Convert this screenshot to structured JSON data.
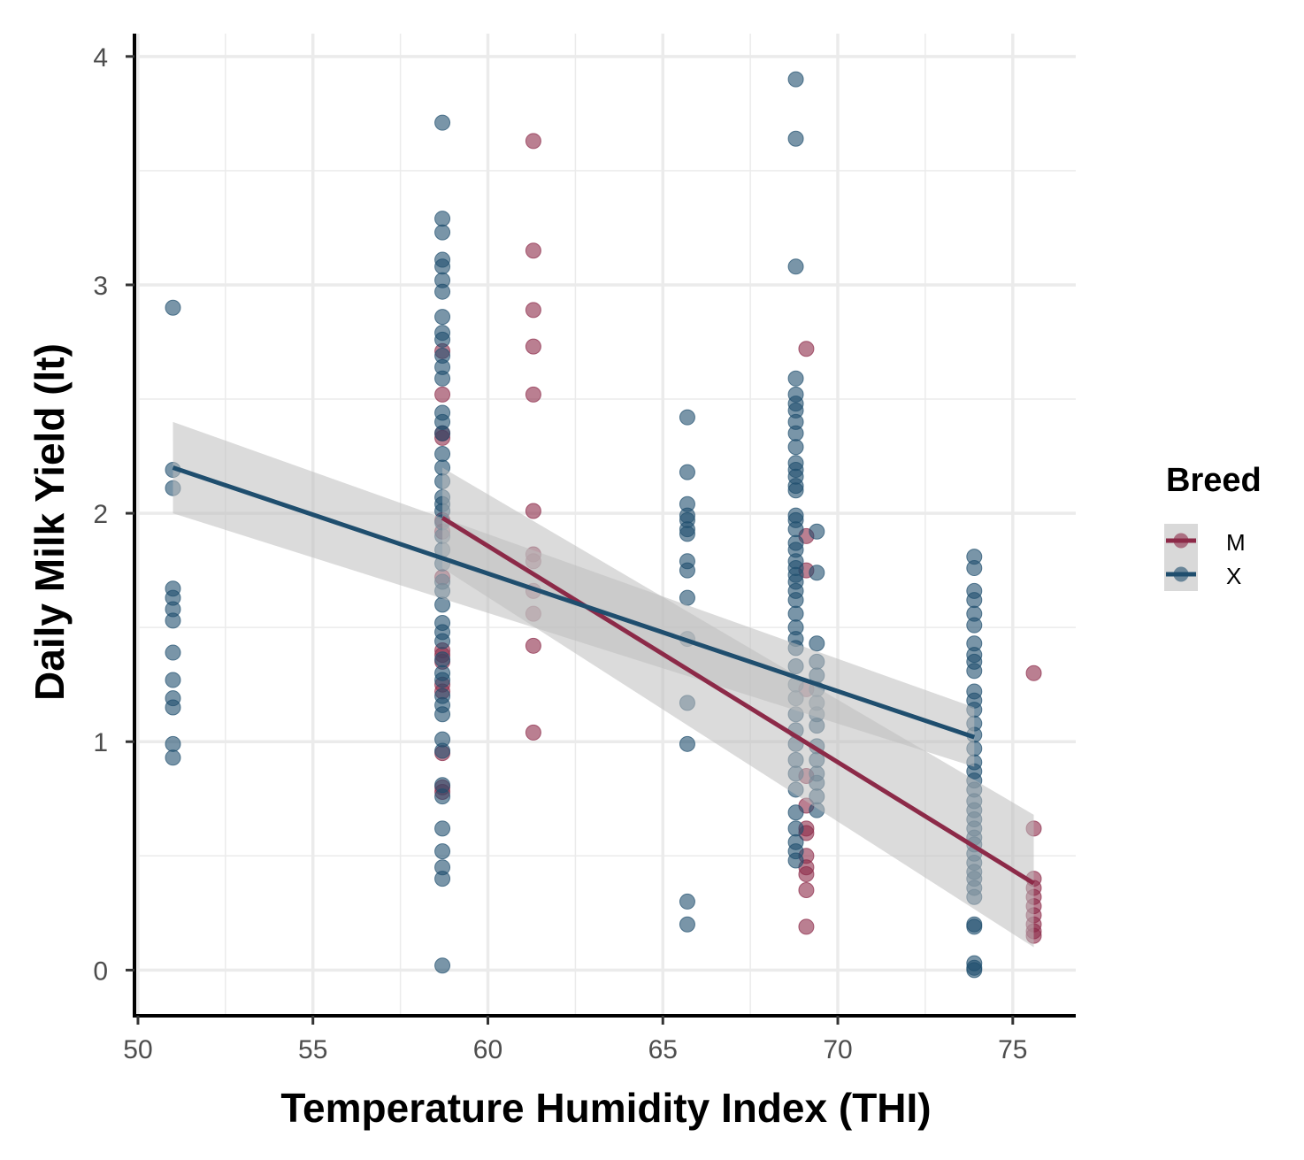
{
  "chart_data": {
    "type": "scatter",
    "title": "",
    "xlabel": "Temperature Humidity Index (THI)",
    "ylabel": "Daily Milk Yield (lt)",
    "xlim": [
      49.9,
      76.8
    ],
    "ylim": [
      -0.2,
      4.1
    ],
    "x_ticks": [
      50,
      55,
      60,
      65,
      70,
      75
    ],
    "y_ticks": [
      0,
      1,
      2,
      3,
      4
    ],
    "x_tick_labels": [
      "50",
      "55",
      "60",
      "65",
      "70",
      "75"
    ],
    "y_tick_labels": [
      "0",
      "1",
      "2",
      "3",
      "4"
    ],
    "grid": true,
    "legend": {
      "title": "Breed",
      "position": "right",
      "entries": [
        "M",
        "X"
      ]
    },
    "colors": {
      "M": "#8c2a48",
      "X": "#1f4e6e",
      "band": "#bdbdbd",
      "grid": "#ebebeb",
      "axis": "#000000"
    },
    "series": [
      {
        "name": "M",
        "points": [
          [
            58.7,
            2.71
          ],
          [
            58.7,
            2.52
          ],
          [
            58.7,
            2.35
          ],
          [
            58.7,
            2.33
          ],
          [
            58.7,
            1.97
          ],
          [
            58.7,
            1.92
          ],
          [
            58.7,
            1.72
          ],
          [
            58.7,
            1.4
          ],
          [
            58.7,
            1.38
          ],
          [
            58.7,
            1.35
          ],
          [
            58.7,
            1.25
          ],
          [
            58.7,
            1.22
          ],
          [
            58.7,
            0.95
          ],
          [
            58.7,
            0.8
          ],
          [
            58.7,
            0.78
          ],
          [
            61.3,
            3.63
          ],
          [
            61.3,
            3.15
          ],
          [
            61.3,
            2.89
          ],
          [
            61.3,
            2.73
          ],
          [
            61.3,
            2.52
          ],
          [
            61.3,
            2.01
          ],
          [
            61.3,
            1.82
          ],
          [
            61.3,
            1.79
          ],
          [
            61.3,
            1.66
          ],
          [
            61.3,
            1.56
          ],
          [
            61.3,
            1.42
          ],
          [
            61.3,
            1.04
          ],
          [
            69.1,
            2.72
          ],
          [
            69.1,
            1.9
          ],
          [
            69.1,
            1.75
          ],
          [
            69.1,
            1.23
          ],
          [
            69.1,
            0.85
          ],
          [
            69.1,
            0.72
          ],
          [
            69.1,
            0.62
          ],
          [
            69.1,
            0.6
          ],
          [
            69.1,
            0.5
          ],
          [
            69.1,
            0.45
          ],
          [
            69.1,
            0.42
          ],
          [
            69.1,
            0.35
          ],
          [
            69.1,
            0.19
          ],
          [
            75.6,
            1.3
          ],
          [
            75.6,
            0.62
          ],
          [
            75.6,
            0.4
          ],
          [
            75.6,
            0.36
          ],
          [
            75.6,
            0.32
          ],
          [
            75.6,
            0.28
          ],
          [
            75.6,
            0.24
          ],
          [
            75.6,
            0.2
          ],
          [
            75.6,
            0.17
          ],
          [
            75.6,
            0.15
          ]
        ],
        "fit": {
          "x": [
            58.7,
            75.6
          ],
          "y": [
            1.98,
            0.38
          ],
          "ci_upper": [
            2.2,
            0.68
          ],
          "ci_lower": [
            1.76,
            0.1
          ]
        }
      },
      {
        "name": "X",
        "points": [
          [
            51.0,
            2.9
          ],
          [
            51.0,
            2.19
          ],
          [
            51.0,
            2.11
          ],
          [
            51.0,
            1.67
          ],
          [
            51.0,
            1.63
          ],
          [
            51.0,
            1.58
          ],
          [
            51.0,
            1.53
          ],
          [
            51.0,
            1.39
          ],
          [
            51.0,
            1.27
          ],
          [
            51.0,
            1.19
          ],
          [
            51.0,
            1.15
          ],
          [
            51.0,
            0.99
          ],
          [
            51.0,
            0.93
          ],
          [
            58.7,
            3.71
          ],
          [
            58.7,
            3.29
          ],
          [
            58.7,
            3.23
          ],
          [
            58.7,
            3.11
          ],
          [
            58.7,
            3.08
          ],
          [
            58.7,
            3.02
          ],
          [
            58.7,
            2.97
          ],
          [
            58.7,
            2.86
          ],
          [
            58.7,
            2.79
          ],
          [
            58.7,
            2.76
          ],
          [
            58.7,
            2.69
          ],
          [
            58.7,
            2.64
          ],
          [
            58.7,
            2.59
          ],
          [
            58.7,
            2.44
          ],
          [
            58.7,
            2.4
          ],
          [
            58.7,
            2.35
          ],
          [
            58.7,
            2.26
          ],
          [
            58.7,
            2.2
          ],
          [
            58.7,
            2.14
          ],
          [
            58.7,
            2.07
          ],
          [
            58.7,
            2.04
          ],
          [
            58.7,
            2.01
          ],
          [
            58.7,
            1.96
          ],
          [
            58.7,
            1.9
          ],
          [
            58.7,
            1.84
          ],
          [
            58.7,
            1.78
          ],
          [
            58.7,
            1.7
          ],
          [
            58.7,
            1.66
          ],
          [
            58.7,
            1.6
          ],
          [
            58.7,
            1.52
          ],
          [
            58.7,
            1.48
          ],
          [
            58.7,
            1.44
          ],
          [
            58.7,
            1.36
          ],
          [
            58.7,
            1.3
          ],
          [
            58.7,
            1.27
          ],
          [
            58.7,
            1.2
          ],
          [
            58.7,
            1.16
          ],
          [
            58.7,
            1.12
          ],
          [
            58.7,
            1.01
          ],
          [
            58.7,
            0.96
          ],
          [
            58.7,
            0.81
          ],
          [
            58.7,
            0.76
          ],
          [
            58.7,
            0.62
          ],
          [
            58.7,
            0.52
          ],
          [
            58.7,
            0.45
          ],
          [
            58.7,
            0.4
          ],
          [
            58.7,
            0.02
          ],
          [
            65.7,
            2.42
          ],
          [
            65.7,
            2.18
          ],
          [
            65.7,
            2.04
          ],
          [
            65.7,
            1.99
          ],
          [
            65.7,
            1.97
          ],
          [
            65.7,
            1.93
          ],
          [
            65.7,
            1.91
          ],
          [
            65.7,
            1.79
          ],
          [
            65.7,
            1.75
          ],
          [
            65.7,
            1.63
          ],
          [
            65.7,
            1.45
          ],
          [
            65.7,
            1.17
          ],
          [
            65.7,
            0.99
          ],
          [
            65.7,
            0.3
          ],
          [
            65.7,
            0.2
          ],
          [
            68.8,
            3.9
          ],
          [
            68.8,
            3.64
          ],
          [
            68.8,
            3.08
          ],
          [
            68.8,
            2.59
          ],
          [
            68.8,
            2.52
          ],
          [
            68.8,
            2.48
          ],
          [
            68.8,
            2.45
          ],
          [
            68.8,
            2.4
          ],
          [
            68.8,
            2.35
          ],
          [
            68.8,
            2.29
          ],
          [
            68.8,
            2.22
          ],
          [
            68.8,
            2.19
          ],
          [
            68.8,
            2.16
          ],
          [
            68.8,
            2.12
          ],
          [
            68.8,
            2.1
          ],
          [
            68.8,
            1.99
          ],
          [
            68.8,
            1.97
          ],
          [
            68.8,
            1.93
          ],
          [
            68.8,
            1.87
          ],
          [
            68.8,
            1.84
          ],
          [
            68.8,
            1.79
          ],
          [
            68.8,
            1.76
          ],
          [
            68.8,
            1.73
          ],
          [
            68.8,
            1.7
          ],
          [
            68.8,
            1.66
          ],
          [
            68.8,
            1.62
          ],
          [
            68.8,
            1.56
          ],
          [
            68.8,
            1.5
          ],
          [
            68.8,
            1.45
          ],
          [
            68.8,
            1.41
          ],
          [
            68.8,
            1.33
          ],
          [
            68.8,
            1.25
          ],
          [
            68.8,
            1.19
          ],
          [
            68.8,
            1.12
          ],
          [
            68.8,
            1.05
          ],
          [
            68.8,
            0.99
          ],
          [
            68.8,
            0.92
          ],
          [
            68.8,
            0.86
          ],
          [
            68.8,
            0.79
          ],
          [
            68.8,
            0.69
          ],
          [
            68.8,
            0.62
          ],
          [
            68.8,
            0.56
          ],
          [
            68.8,
            0.52
          ],
          [
            68.8,
            0.48
          ],
          [
            69.4,
            1.92
          ],
          [
            69.4,
            1.74
          ],
          [
            69.4,
            1.43
          ],
          [
            69.4,
            1.35
          ],
          [
            69.4,
            1.29
          ],
          [
            69.4,
            1.23
          ],
          [
            69.4,
            1.17
          ],
          [
            69.4,
            1.12
          ],
          [
            69.4,
            1.07
          ],
          [
            69.4,
            0.98
          ],
          [
            69.4,
            0.92
          ],
          [
            69.4,
            0.86
          ],
          [
            69.4,
            0.82
          ],
          [
            69.4,
            0.76
          ],
          [
            69.4,
            0.7
          ],
          [
            73.9,
            1.81
          ],
          [
            73.9,
            1.76
          ],
          [
            73.9,
            1.66
          ],
          [
            73.9,
            1.62
          ],
          [
            73.9,
            1.56
          ],
          [
            73.9,
            1.51
          ],
          [
            73.9,
            1.43
          ],
          [
            73.9,
            1.38
          ],
          [
            73.9,
            1.35
          ],
          [
            73.9,
            1.31
          ],
          [
            73.9,
            1.22
          ],
          [
            73.9,
            1.18
          ],
          [
            73.9,
            1.14
          ],
          [
            73.9,
            1.08
          ],
          [
            73.9,
            1.03
          ],
          [
            73.9,
            0.97
          ],
          [
            73.9,
            0.91
          ],
          [
            73.9,
            0.87
          ],
          [
            73.9,
            0.83
          ],
          [
            73.9,
            0.79
          ],
          [
            73.9,
            0.74
          ],
          [
            73.9,
            0.7
          ],
          [
            73.9,
            0.66
          ],
          [
            73.9,
            0.62
          ],
          [
            73.9,
            0.58
          ],
          [
            73.9,
            0.55
          ],
          [
            73.9,
            0.51
          ],
          [
            73.9,
            0.47
          ],
          [
            73.9,
            0.43
          ],
          [
            73.9,
            0.4
          ],
          [
            73.9,
            0.36
          ],
          [
            73.9,
            0.32
          ],
          [
            73.9,
            0.2
          ],
          [
            73.9,
            0.19
          ],
          [
            73.9,
            0.03
          ],
          [
            73.9,
            0.01
          ],
          [
            73.9,
            0.0
          ]
        ],
        "fit": {
          "x": [
            51.0,
            73.9
          ],
          "y": [
            2.2,
            1.02
          ],
          "ci_upper": [
            2.4,
            1.15
          ],
          "ci_lower": [
            2.0,
            0.89
          ]
        }
      }
    ]
  }
}
